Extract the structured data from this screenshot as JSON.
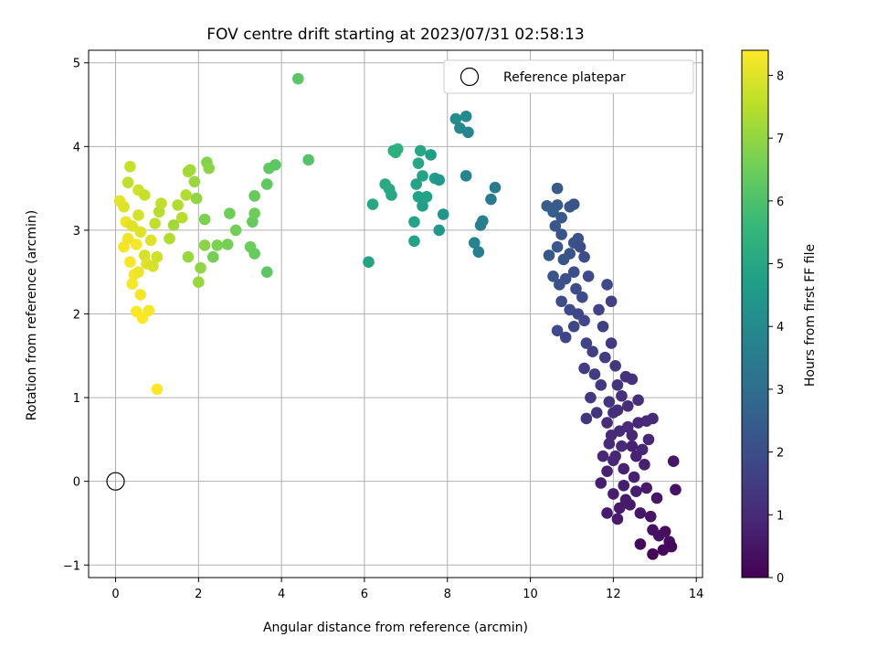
{
  "chart_data": {
    "type": "scatter",
    "title": "FOV centre drift starting at 2023/07/31 02:58:13",
    "xlabel": "Angular distance from reference (arcmin)",
    "ylabel": "Rotation from reference (arcmin)",
    "xlim": [
      -0.65,
      14.15
    ],
    "ylim": [
      -1.15,
      5.15
    ],
    "xticks": [
      0,
      2,
      4,
      6,
      8,
      10,
      12,
      14
    ],
    "yticks": [
      -1,
      0,
      1,
      2,
      3,
      4,
      5
    ],
    "grid": true,
    "legend": {
      "placement": "top-right",
      "entries": [
        "Reference platepar"
      ]
    },
    "reference_point": {
      "x": 0,
      "y": 0,
      "label": "Reference platepar"
    },
    "colorbar": {
      "label": "Hours from first FF file",
      "colormap": "viridis",
      "range": [
        0,
        8.4
      ],
      "ticks": [
        0,
        1,
        2,
        3,
        4,
        5,
        6,
        7,
        8
      ]
    },
    "colormap_stops": [
      "#440154",
      "#482878",
      "#3e4989",
      "#31688e",
      "#26828e",
      "#1f9e89",
      "#35b779",
      "#6ece58",
      "#b5de2b",
      "#fde725"
    ],
    "points": [
      {
        "x": 0.1,
        "y": 3.35,
        "h": 8.1
      },
      {
        "x": 0.2,
        "y": 3.28,
        "h": 8.0
      },
      {
        "x": 0.3,
        "y": 3.57,
        "h": 7.6
      },
      {
        "x": 0.35,
        "y": 3.76,
        "h": 7.7
      },
      {
        "x": 0.25,
        "y": 3.1,
        "h": 8.2
      },
      {
        "x": 0.4,
        "y": 3.05,
        "h": 8.0
      },
      {
        "x": 0.2,
        "y": 2.8,
        "h": 8.3
      },
      {
        "x": 0.3,
        "y": 2.9,
        "h": 8.2
      },
      {
        "x": 0.55,
        "y": 3.48,
        "h": 7.8
      },
      {
        "x": 0.7,
        "y": 3.42,
        "h": 7.7
      },
      {
        "x": 0.55,
        "y": 3.18,
        "h": 7.9
      },
      {
        "x": 0.6,
        "y": 2.98,
        "h": 8.0
      },
      {
        "x": 0.5,
        "y": 2.83,
        "h": 8.3
      },
      {
        "x": 0.35,
        "y": 2.62,
        "h": 8.3
      },
      {
        "x": 0.45,
        "y": 2.47,
        "h": 8.3
      },
      {
        "x": 0.4,
        "y": 2.36,
        "h": 8.3
      },
      {
        "x": 0.55,
        "y": 2.5,
        "h": 8.2
      },
      {
        "x": 0.6,
        "y": 2.23,
        "h": 8.3
      },
      {
        "x": 0.5,
        "y": 2.03,
        "h": 8.4
      },
      {
        "x": 0.65,
        "y": 1.95,
        "h": 8.4
      },
      {
        "x": 0.8,
        "y": 2.04,
        "h": 8.3
      },
      {
        "x": 0.7,
        "y": 2.7,
        "h": 7.9
      },
      {
        "x": 0.85,
        "y": 2.88,
        "h": 8.0
      },
      {
        "x": 0.75,
        "y": 2.6,
        "h": 8.0
      },
      {
        "x": 0.9,
        "y": 2.57,
        "h": 7.9
      },
      {
        "x": 1.0,
        "y": 2.68,
        "h": 7.8
      },
      {
        "x": 1.0,
        "y": 1.1,
        "h": 8.4
      },
      {
        "x": 0.95,
        "y": 3.08,
        "h": 7.6
      },
      {
        "x": 1.05,
        "y": 3.22,
        "h": 7.5
      },
      {
        "x": 1.1,
        "y": 3.32,
        "h": 7.6
      },
      {
        "x": 1.3,
        "y": 2.9,
        "h": 7.4
      },
      {
        "x": 1.4,
        "y": 3.06,
        "h": 7.2
      },
      {
        "x": 1.5,
        "y": 3.3,
        "h": 7.4
      },
      {
        "x": 1.6,
        "y": 3.15,
        "h": 7.5
      },
      {
        "x": 1.7,
        "y": 3.42,
        "h": 7.4
      },
      {
        "x": 1.75,
        "y": 3.7,
        "h": 7.3
      },
      {
        "x": 1.8,
        "y": 3.72,
        "h": 7.2
      },
      {
        "x": 1.9,
        "y": 3.58,
        "h": 7.1
      },
      {
        "x": 1.95,
        "y": 3.38,
        "h": 7.0
      },
      {
        "x": 1.75,
        "y": 2.68,
        "h": 7.1
      },
      {
        "x": 2.05,
        "y": 2.55,
        "h": 7.0
      },
      {
        "x": 2.0,
        "y": 2.38,
        "h": 7.1
      },
      {
        "x": 2.15,
        "y": 2.82,
        "h": 6.9
      },
      {
        "x": 2.2,
        "y": 3.81,
        "h": 6.8
      },
      {
        "x": 2.25,
        "y": 3.74,
        "h": 6.9
      },
      {
        "x": 2.15,
        "y": 3.13,
        "h": 6.7
      },
      {
        "x": 2.35,
        "y": 2.68,
        "h": 6.6
      },
      {
        "x": 2.45,
        "y": 2.82,
        "h": 6.7
      },
      {
        "x": 2.7,
        "y": 2.83,
        "h": 6.6
      },
      {
        "x": 2.75,
        "y": 3.2,
        "h": 6.5
      },
      {
        "x": 2.9,
        "y": 3.0,
        "h": 6.6
      },
      {
        "x": 3.25,
        "y": 2.8,
        "h": 6.5
      },
      {
        "x": 3.35,
        "y": 2.72,
        "h": 6.4
      },
      {
        "x": 3.3,
        "y": 3.1,
        "h": 6.4
      },
      {
        "x": 3.35,
        "y": 3.2,
        "h": 6.5
      },
      {
        "x": 3.35,
        "y": 3.41,
        "h": 6.4
      },
      {
        "x": 3.65,
        "y": 3.55,
        "h": 6.3
      },
      {
        "x": 3.7,
        "y": 3.74,
        "h": 6.3
      },
      {
        "x": 3.85,
        "y": 3.78,
        "h": 6.2
      },
      {
        "x": 3.65,
        "y": 2.5,
        "h": 6.2
      },
      {
        "x": 4.4,
        "y": 4.81,
        "h": 6.2
      },
      {
        "x": 4.65,
        "y": 3.84,
        "h": 6.1
      },
      {
        "x": 6.1,
        "y": 2.62,
        "h": 4.9
      },
      {
        "x": 6.2,
        "y": 3.31,
        "h": 5.0
      },
      {
        "x": 6.5,
        "y": 3.55,
        "h": 5.1
      },
      {
        "x": 6.6,
        "y": 3.49,
        "h": 5.1
      },
      {
        "x": 6.65,
        "y": 3.42,
        "h": 5.0
      },
      {
        "x": 6.7,
        "y": 3.95,
        "h": 5.3
      },
      {
        "x": 6.8,
        "y": 3.97,
        "h": 5.4
      },
      {
        "x": 6.75,
        "y": 3.93,
        "h": 5.3
      },
      {
        "x": 7.2,
        "y": 3.1,
        "h": 4.9
      },
      {
        "x": 7.2,
        "y": 2.87,
        "h": 4.8
      },
      {
        "x": 7.25,
        "y": 3.55,
        "h": 4.9
      },
      {
        "x": 7.3,
        "y": 3.8,
        "h": 5.0
      },
      {
        "x": 7.35,
        "y": 3.95,
        "h": 5.0
      },
      {
        "x": 7.3,
        "y": 3.4,
        "h": 4.8
      },
      {
        "x": 7.4,
        "y": 3.65,
        "h": 4.9
      },
      {
        "x": 7.5,
        "y": 3.4,
        "h": 4.8
      },
      {
        "x": 7.4,
        "y": 3.29,
        "h": 4.7
      },
      {
        "x": 7.6,
        "y": 3.9,
        "h": 4.7
      },
      {
        "x": 7.7,
        "y": 3.62,
        "h": 4.6
      },
      {
        "x": 7.8,
        "y": 3.6,
        "h": 4.5
      },
      {
        "x": 7.8,
        "y": 3.0,
        "h": 4.5
      },
      {
        "x": 7.9,
        "y": 3.19,
        "h": 4.4
      },
      {
        "x": 8.2,
        "y": 4.33,
        "h": 4.1
      },
      {
        "x": 8.3,
        "y": 4.22,
        "h": 4.0
      },
      {
        "x": 8.45,
        "y": 4.36,
        "h": 4.0
      },
      {
        "x": 8.5,
        "y": 4.17,
        "h": 3.9
      },
      {
        "x": 8.45,
        "y": 3.65,
        "h": 3.8
      },
      {
        "x": 8.65,
        "y": 2.85,
        "h": 3.8
      },
      {
        "x": 8.75,
        "y": 2.74,
        "h": 3.7
      },
      {
        "x": 8.85,
        "y": 3.11,
        "h": 3.7
      },
      {
        "x": 8.8,
        "y": 3.06,
        "h": 3.6
      },
      {
        "x": 9.05,
        "y": 3.37,
        "h": 3.5
      },
      {
        "x": 9.15,
        "y": 3.51,
        "h": 3.5
      },
      {
        "x": 10.65,
        "y": 3.5,
        "h": 2.4
      },
      {
        "x": 10.4,
        "y": 3.29,
        "h": 2.5
      },
      {
        "x": 10.55,
        "y": 3.22,
        "h": 2.5
      },
      {
        "x": 10.65,
        "y": 3.3,
        "h": 2.4
      },
      {
        "x": 10.75,
        "y": 3.15,
        "h": 2.3
      },
      {
        "x": 10.95,
        "y": 3.28,
        "h": 2.3
      },
      {
        "x": 11.05,
        "y": 3.31,
        "h": 2.2
      },
      {
        "x": 10.6,
        "y": 3.05,
        "h": 2.3
      },
      {
        "x": 10.75,
        "y": 2.95,
        "h": 2.2
      },
      {
        "x": 10.65,
        "y": 2.8,
        "h": 2.3
      },
      {
        "x": 10.45,
        "y": 2.7,
        "h": 2.3
      },
      {
        "x": 10.8,
        "y": 2.65,
        "h": 2.2
      },
      {
        "x": 10.95,
        "y": 2.72,
        "h": 2.2
      },
      {
        "x": 11.05,
        "y": 2.85,
        "h": 2.1
      },
      {
        "x": 11.15,
        "y": 2.9,
        "h": 2.1
      },
      {
        "x": 11.2,
        "y": 2.8,
        "h": 2.0
      },
      {
        "x": 11.3,
        "y": 2.68,
        "h": 2.0
      },
      {
        "x": 10.55,
        "y": 2.45,
        "h": 2.2
      },
      {
        "x": 10.7,
        "y": 2.35,
        "h": 2.1
      },
      {
        "x": 10.85,
        "y": 2.42,
        "h": 2.1
      },
      {
        "x": 11.05,
        "y": 2.5,
        "h": 2.0
      },
      {
        "x": 11.1,
        "y": 2.3,
        "h": 2.0
      },
      {
        "x": 11.25,
        "y": 2.2,
        "h": 1.9
      },
      {
        "x": 11.4,
        "y": 2.45,
        "h": 1.9
      },
      {
        "x": 10.75,
        "y": 2.15,
        "h": 2.0
      },
      {
        "x": 10.95,
        "y": 2.05,
        "h": 1.9
      },
      {
        "x": 11.15,
        "y": 2.0,
        "h": 1.8
      },
      {
        "x": 11.3,
        "y": 1.92,
        "h": 1.8
      },
      {
        "x": 10.65,
        "y": 1.8,
        "h": 1.9
      },
      {
        "x": 10.85,
        "y": 1.72,
        "h": 1.8
      },
      {
        "x": 11.05,
        "y": 1.85,
        "h": 1.8
      },
      {
        "x": 11.35,
        "y": 1.65,
        "h": 1.7
      },
      {
        "x": 11.65,
        "y": 2.05,
        "h": 1.7
      },
      {
        "x": 11.85,
        "y": 2.35,
        "h": 1.9
      },
      {
        "x": 11.95,
        "y": 2.15,
        "h": 1.6
      },
      {
        "x": 11.75,
        "y": 1.85,
        "h": 1.6
      },
      {
        "x": 11.5,
        "y": 1.55,
        "h": 1.6
      },
      {
        "x": 11.3,
        "y": 1.35,
        "h": 1.5
      },
      {
        "x": 11.55,
        "y": 1.28,
        "h": 1.5
      },
      {
        "x": 11.8,
        "y": 1.48,
        "h": 1.5
      },
      {
        "x": 11.95,
        "y": 1.65,
        "h": 1.4
      },
      {
        "x": 12.05,
        "y": 1.38,
        "h": 1.4
      },
      {
        "x": 11.7,
        "y": 1.15,
        "h": 1.4
      },
      {
        "x": 11.45,
        "y": 1.0,
        "h": 1.4
      },
      {
        "x": 11.6,
        "y": 0.82,
        "h": 1.3
      },
      {
        "x": 11.35,
        "y": 0.75,
        "h": 1.3
      },
      {
        "x": 11.9,
        "y": 0.95,
        "h": 1.3
      },
      {
        "x": 12.1,
        "y": 1.15,
        "h": 1.3
      },
      {
        "x": 12.3,
        "y": 1.25,
        "h": 1.2
      },
      {
        "x": 12.45,
        "y": 1.22,
        "h": 1.2
      },
      {
        "x": 12.2,
        "y": 1.02,
        "h": 1.2
      },
      {
        "x": 12.0,
        "y": 0.82,
        "h": 1.2
      },
      {
        "x": 11.85,
        "y": 0.7,
        "h": 1.1
      },
      {
        "x": 12.35,
        "y": 0.9,
        "h": 1.1
      },
      {
        "x": 12.6,
        "y": 0.97,
        "h": 1.1
      },
      {
        "x": 12.8,
        "y": 0.72,
        "h": 1.0
      },
      {
        "x": 12.95,
        "y": 0.75,
        "h": 1.0
      },
      {
        "x": 12.15,
        "y": 0.6,
        "h": 1.0
      },
      {
        "x": 11.9,
        "y": 0.45,
        "h": 1.0
      },
      {
        "x": 12.45,
        "y": 0.55,
        "h": 0.9
      },
      {
        "x": 12.7,
        "y": 0.38,
        "h": 0.9
      },
      {
        "x": 12.85,
        "y": 0.5,
        "h": 0.9
      },
      {
        "x": 12.05,
        "y": 0.3,
        "h": 0.9
      },
      {
        "x": 11.85,
        "y": 0.12,
        "h": 0.8
      },
      {
        "x": 12.25,
        "y": 0.15,
        "h": 0.8
      },
      {
        "x": 12.5,
        "y": 0.05,
        "h": 0.8
      },
      {
        "x": 12.75,
        "y": 0.2,
        "h": 0.8
      },
      {
        "x": 11.7,
        "y": -0.02,
        "h": 0.7
      },
      {
        "x": 12.0,
        "y": -0.15,
        "h": 0.7
      },
      {
        "x": 12.3,
        "y": -0.22,
        "h": 0.7
      },
      {
        "x": 12.55,
        "y": -0.12,
        "h": 0.7
      },
      {
        "x": 12.8,
        "y": -0.08,
        "h": 0.6
      },
      {
        "x": 11.85,
        "y": -0.38,
        "h": 0.6
      },
      {
        "x": 12.15,
        "y": -0.32,
        "h": 0.6
      },
      {
        "x": 12.4,
        "y": -0.28,
        "h": 0.6
      },
      {
        "x": 12.65,
        "y": -0.38,
        "h": 0.5
      },
      {
        "x": 12.9,
        "y": -0.42,
        "h": 0.5
      },
      {
        "x": 13.05,
        "y": -0.2,
        "h": 0.5
      },
      {
        "x": 13.45,
        "y": 0.24,
        "h": 0.5
      },
      {
        "x": 13.5,
        "y": -0.1,
        "h": 0.4
      },
      {
        "x": 12.95,
        "y": -0.58,
        "h": 0.4
      },
      {
        "x": 13.1,
        "y": -0.65,
        "h": 0.4
      },
      {
        "x": 13.25,
        "y": -0.6,
        "h": 0.3
      },
      {
        "x": 13.35,
        "y": -0.72,
        "h": 0.3
      },
      {
        "x": 13.4,
        "y": -0.78,
        "h": 0.2
      },
      {
        "x": 13.2,
        "y": -0.82,
        "h": 0.2
      },
      {
        "x": 12.95,
        "y": -0.87,
        "h": 0.1
      },
      {
        "x": 12.65,
        "y": -0.75,
        "h": 0.2
      },
      {
        "x": 12.0,
        "y": 0.25,
        "h": 0.9
      },
      {
        "x": 12.2,
        "y": 0.42,
        "h": 1.0
      },
      {
        "x": 12.35,
        "y": 0.65,
        "h": 1.0
      },
      {
        "x": 12.55,
        "y": 0.3,
        "h": 0.8
      },
      {
        "x": 12.1,
        "y": 0.85,
        "h": 1.1
      },
      {
        "x": 11.95,
        "y": 0.55,
        "h": 1.0
      },
      {
        "x": 12.25,
        "y": -0.05,
        "h": 0.7
      },
      {
        "x": 12.6,
        "y": 0.7,
        "h": 0.9
      },
      {
        "x": 11.75,
        "y": 0.3,
        "h": 0.9
      },
      {
        "x": 12.45,
        "y": 0.42,
        "h": 0.8
      },
      {
        "x": 12.1,
        "y": -0.45,
        "h": 0.6
      }
    ]
  }
}
